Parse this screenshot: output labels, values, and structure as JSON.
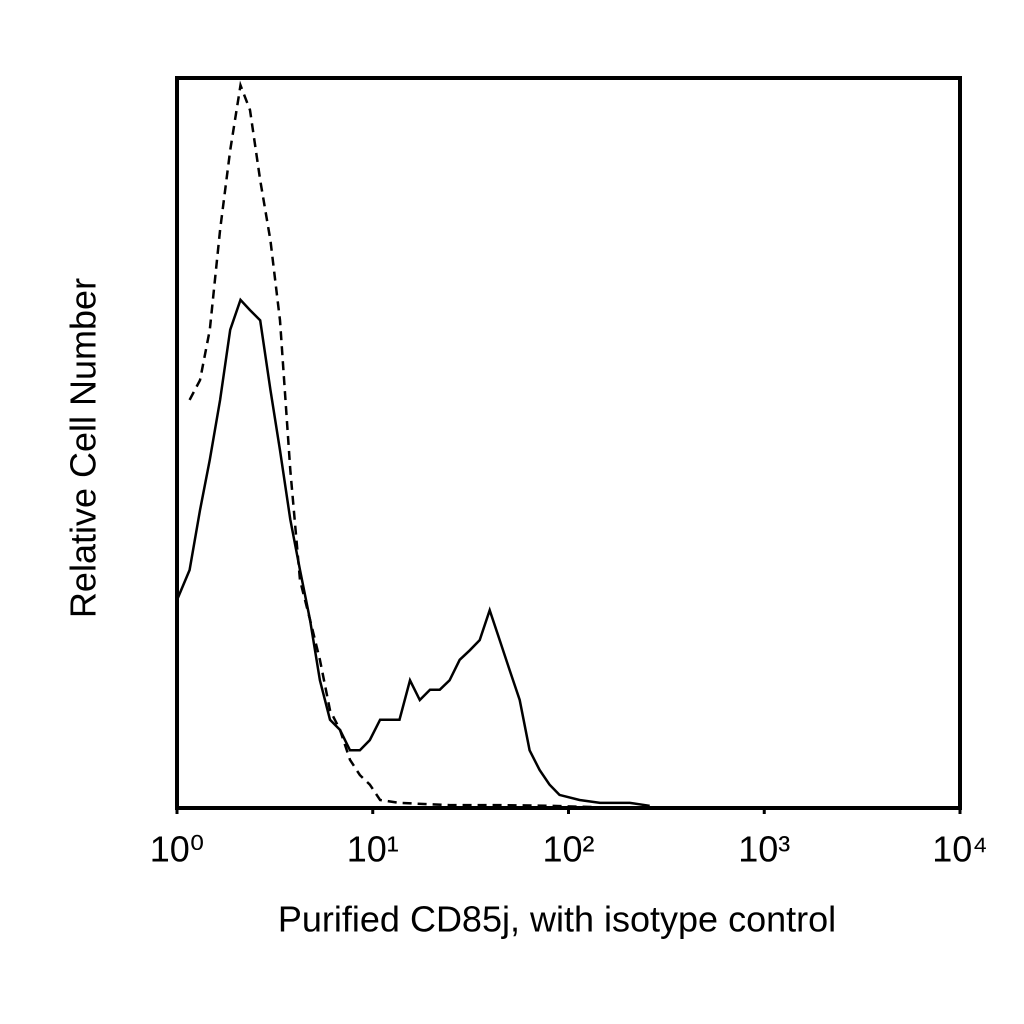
{
  "chart_data": {
    "type": "line",
    "x_label": "Purified CD85j, with isotype control",
    "y_label": "Relative Cell Number",
    "xscale": "log",
    "xlim": [
      1,
      10000
    ],
    "xticks": [
      {
        "value": 1,
        "label": "10⁰"
      },
      {
        "value": 10,
        "label": "10¹"
      },
      {
        "value": 100,
        "label": "10²"
      },
      {
        "value": 1000,
        "label": "10³"
      },
      {
        "value": 10000,
        "label": "10⁴"
      }
    ],
    "ylim": [
      0,
      100
    ],
    "series": [
      {
        "color": "#000000",
        "dash": false,
        "x": [
          1,
          1.16,
          1.31,
          1.47,
          1.66,
          1.87,
          2.11,
          2.36,
          2.66,
          3.0,
          3.36,
          3.79,
          4.25,
          4.78,
          5.37,
          6.05,
          6.8,
          7.65,
          8.6,
          9.66,
          10.9,
          12.2,
          13.7,
          15.5,
          17.4,
          19.6,
          22.0,
          24.7,
          27.8,
          31.3,
          35.2,
          39.6,
          44.5,
          50,
          56.3,
          63.3,
          71.2,
          80,
          90,
          114,
          145,
          206,
          260
        ],
        "values": [
          28.5,
          32.6,
          40.8,
          47.7,
          55.9,
          65.5,
          69.6,
          68.2,
          66.8,
          57.3,
          49.0,
          39.5,
          32.6,
          25.8,
          17.5,
          12.1,
          10.7,
          7.9,
          7.9,
          9.3,
          12.1,
          12.1,
          12.1,
          17.5,
          14.8,
          16.2,
          16.2,
          17.5,
          20.3,
          21.6,
          23.0,
          27.1,
          23.0,
          18.9,
          14.8,
          7.9,
          5.2,
          3.2,
          1.8,
          1.1,
          0.7,
          0.7,
          0.3
        ]
      },
      {
        "color": "#000000",
        "dash": true,
        "x": [
          1.16,
          1.31,
          1.47,
          1.66,
          1.87,
          2.11,
          2.36,
          2.66,
          3.0,
          3.36,
          3.79,
          4.25,
          4.78,
          5.37,
          6.05,
          6.8,
          7.65,
          8.6,
          9.66,
          10.9,
          13.7,
          24.7,
          44.5,
          80,
          145
        ],
        "values": [
          55.9,
          58.6,
          65.5,
          79.2,
          90.1,
          99.0,
          95.6,
          86.0,
          77.8,
          66.8,
          46.3,
          31.2,
          25.8,
          20.3,
          13.4,
          10.7,
          6.6,
          4.5,
          3.2,
          1.1,
          0.7,
          0.4,
          0.4,
          0.3,
          0.1
        ]
      }
    ]
  }
}
